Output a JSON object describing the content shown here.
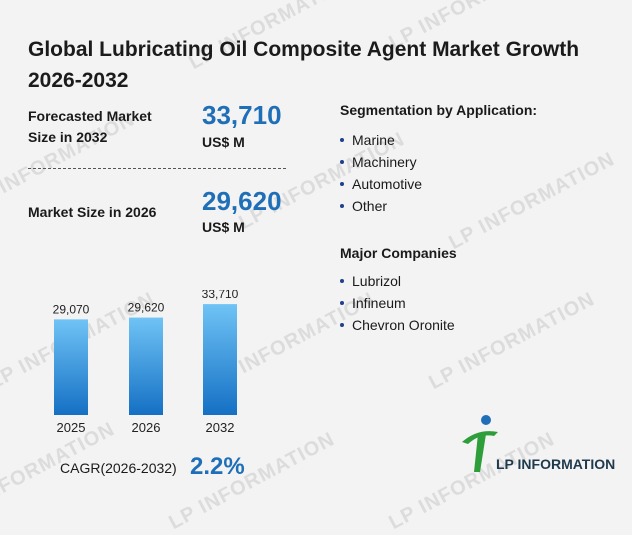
{
  "title": "Global Lubricating Oil Composite Agent Market Growth 2026-2032",
  "forecast": {
    "label": "Forecasted Market Size in 2032",
    "value": "33,710",
    "unit": "US$ M"
  },
  "current": {
    "label": "Market Size in 2026",
    "value": "29,620",
    "unit": "US$ M"
  },
  "segmentation": {
    "title": "Segmentation by Application:",
    "items": [
      "Marine",
      "Machinery",
      "Automotive",
      "Other"
    ]
  },
  "companies": {
    "title": "Major Companies",
    "items": [
      "Lubrizol",
      "Infineum",
      "Chevron Oronite"
    ]
  },
  "cagr": {
    "label": "CAGR(2026-2032)",
    "value": "2.2%"
  },
  "logo": {
    "text": "LP INFORMATION",
    "icon": "lp-information-logo"
  },
  "watermark": "LP INFORMATION",
  "colors": {
    "accent": "#1f6fb8",
    "bar_top": "#6fc3f5",
    "bar_bottom": "#1570c4",
    "logo_green": "#2e9e3a",
    "logo_blue": "#1f6fb8"
  },
  "chart_data": {
    "type": "bar",
    "categories": [
      "2025",
      "2026",
      "2032"
    ],
    "values": [
      29070,
      29620,
      33710
    ],
    "value_labels": [
      "29,070",
      "29,620",
      "33,710"
    ],
    "title": "",
    "xlabel": "",
    "ylabel": "",
    "ylim": [
      0,
      38000
    ],
    "grid": false
  }
}
